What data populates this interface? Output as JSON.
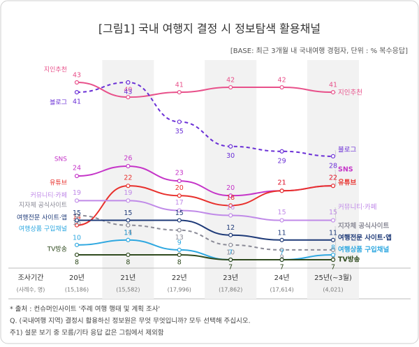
{
  "title": "[그림1] 국내 여행지 결정 시 정보탐색 활용채널",
  "base_note": "[BASE: 최근 3개월 내 국내여행 경험자, 단위 : % 복수응답]",
  "chart_data": {
    "type": "line",
    "row_label": "조사기간",
    "sample_label": "(사례수, 명)",
    "categories": [
      "20년",
      "21년",
      "22년",
      "23년",
      "24년",
      "25년(~3월)"
    ],
    "sample_sizes": [
      "(15,186)",
      "(15,582)",
      "(17,996)",
      "(17,862)",
      "(17,614)",
      "(4,021)"
    ],
    "series": [
      {
        "name": "지인추천",
        "color": "#e8508a",
        "dashed": false,
        "values": [
          43,
          40,
          41,
          42,
          42,
          41
        ]
      },
      {
        "name": "블로그",
        "color": "#6a2fd6",
        "dashed": true,
        "values": [
          41,
          43,
          35,
          30,
          29,
          28
        ]
      },
      {
        "name": "SNS",
        "color": "#c535c8",
        "dashed": false,
        "values": [
          24,
          26,
          23,
          20,
          21,
          22
        ]
      },
      {
        "name": "유튜브",
        "color": "#e8302c",
        "dashed": false,
        "values": [
          14,
          22,
          20,
          18,
          21,
          22
        ]
      },
      {
        "name": "커뮤니티·카페",
        "color": "#c08ae8",
        "dashed": false,
        "values": [
          19,
          19,
          17,
          16,
          15,
          15
        ]
      },
      {
        "name": "지자체 공식사이트",
        "color": "#8a8a96",
        "dashed": true,
        "values": [
          16,
          14,
          13,
          10,
          9,
          9
        ]
      },
      {
        "name": "여행전문 사이트·앱",
        "color": "#1e3a78",
        "dashed": false,
        "values": [
          15,
          15,
          15,
          12,
          11,
          11
        ]
      },
      {
        "name": "여행상품 구입채널",
        "color": "#2fa8e0",
        "dashed": false,
        "values": [
          10,
          11,
          9,
          7,
          7,
          8
        ]
      },
      {
        "name": "TV방송",
        "color": "#2f4a1e",
        "dashed": false,
        "values": [
          8,
          8,
          8,
          7,
          7,
          7
        ]
      }
    ]
  },
  "footnotes": [
    "* 출처 : 컨슈머인사이트 '주례 여행 행태 및 계획 조사'",
    "Q. (국내여행 지역) 결정시 활용하신 정보원은 무엇 무엇입니까? 모두 선택해 주십시오.",
    "주1) 설문 보기 중 모름/기타 응답 값은 그림에서 제외함"
  ]
}
